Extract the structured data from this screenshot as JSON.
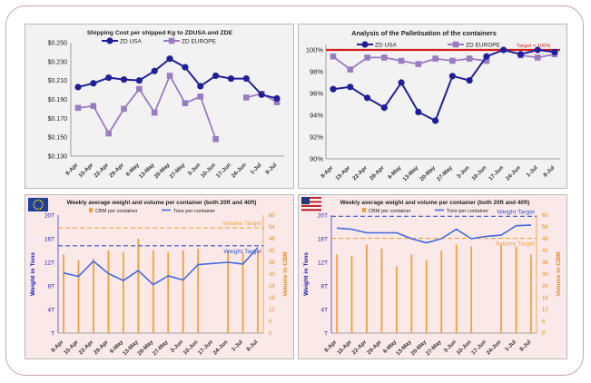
{
  "chart_data": [
    {
      "type": "line",
      "title": "Shipping Cost per shipped Kg to ZDUSA and ZDE",
      "categories": [
        "8-Apr",
        "15-Apr",
        "22-Apr",
        "29-Apr",
        "6-May",
        "13-May",
        "20-May",
        "27-May",
        "3-Jun",
        "10-Jun",
        "17-Jun",
        "24-Jun",
        "1-Jul",
        "8-Jul"
      ],
      "yticks": [
        "$0.250",
        "$0.230",
        "$0.210",
        "$0.190",
        "$0.170",
        "$0.150",
        "$0.130"
      ],
      "ylim": [
        0.13,
        0.25
      ],
      "legend_position": "top",
      "series": [
        {
          "name": "ZD USA",
          "color": "#1f1f9a",
          "values": [
            0.203,
            0.207,
            0.213,
            0.211,
            0.21,
            0.22,
            0.233,
            0.224,
            0.204,
            0.215,
            0.212,
            0.212,
            0.195,
            0.191
          ]
        },
        {
          "name": "ZD EUROPE",
          "color": "#9a7bc4",
          "values": [
            0.181,
            0.183,
            0.154,
            0.18,
            0.201,
            0.176,
            0.215,
            0.186,
            0.193,
            0.148,
            null,
            0.192,
            0.196,
            0.187
          ]
        }
      ]
    },
    {
      "type": "line",
      "title": "Analysis of the Palletisation of the containers",
      "categories": [
        "8-Apr",
        "15-Apr",
        "22-Apr",
        "29-Apr",
        "6-May",
        "13-May",
        "20-May",
        "27-May",
        "3-Jun",
        "10-Jun",
        "17-Jun",
        "24-Jun",
        "1-Jul",
        "8-Jul"
      ],
      "yticks": [
        "100%",
        "98%",
        "96%",
        "94%",
        "92%",
        "90%"
      ],
      "ylim": [
        90,
        100.5
      ],
      "target_label": "Target = 100%",
      "target_value": 100,
      "legend_position": "top",
      "series": [
        {
          "name": "ZD USA",
          "color": "#1f1f9a",
          "values": [
            96.4,
            96.6,
            95.6,
            94.7,
            97.0,
            94.3,
            93.5,
            97.6,
            97.2,
            99.4,
            100.0,
            99.6,
            100.0,
            99.8
          ]
        },
        {
          "name": "ZD EUROPE",
          "color": "#9a7bc4",
          "values": [
            99.4,
            98.2,
            99.3,
            99.3,
            99.0,
            98.7,
            99.2,
            99.0,
            99.2,
            99.0,
            null,
            99.5,
            99.3,
            99.6
          ]
        }
      ]
    },
    {
      "type": "bar",
      "title": "Weekly average weight and volume per container (both 20ft and 40ft)",
      "categories": [
        "8-Apr",
        "15-Apr",
        "22-Apr",
        "29-Apr",
        "6-May",
        "13-May",
        "20-May",
        "27-May",
        "3-Jun",
        "10-Jun",
        "17-Jun",
        "24-Jun",
        "1-Jul",
        "8-Jul"
      ],
      "ylabel": "Weight in Tons",
      "y2label": "Volume in CBM",
      "yticks": [
        "20T",
        "16T",
        "12T",
        "8T",
        "4T",
        "T"
      ],
      "y2ticks": [
        "60",
        "54",
        "48",
        "42",
        "36",
        "30",
        "24",
        "18",
        "12",
        "6",
        "0"
      ],
      "ylim": [
        0,
        20
      ],
      "y2lim": [
        0,
        60
      ],
      "weight_target_label": "Weight Target",
      "weight_target": 14.8,
      "volume_target_label": "Volume Target",
      "volume_target": 53.5,
      "legend_position": "top",
      "series": [
        {
          "name": "CBM per container",
          "color": "#f0a13a",
          "values": [
            40,
            37,
            38,
            42,
            41,
            48,
            42,
            41,
            42,
            43,
            null,
            42,
            41,
            42
          ]
        },
        {
          "name": "Tons per container",
          "color": "#4169e1",
          "values": [
            10.2,
            9.6,
            12.2,
            10.1,
            8.9,
            10.6,
            8.2,
            9.7,
            9.0,
            11.6,
            null,
            12.0,
            11.7,
            14.5
          ]
        }
      ]
    },
    {
      "type": "bar",
      "title": "Weekly average weight and volume per container (both 20ft and 40ft)",
      "categories": [
        "8-Apr",
        "15-Apr",
        "22-Apr",
        "29-Apr",
        "6-May",
        "13-May",
        "20-May",
        "27-May",
        "3-Jun",
        "10-Jun",
        "17-Jun",
        "24-Jun",
        "1-Jul",
        "8-Jul"
      ],
      "ylabel": "Weight in Tons",
      "y2label": "Volume in CBM",
      "yticks": [
        "20T",
        "16T",
        "12T",
        "8T",
        "4T",
        "T"
      ],
      "y2ticks": [
        "60",
        "54",
        "48",
        "42",
        "36",
        "30",
        "24",
        "18",
        "12",
        "6",
        "0"
      ],
      "ylim": [
        0,
        20
      ],
      "y2lim": [
        0,
        60
      ],
      "weight_target_label": "Weight Target",
      "weight_target": 19.8,
      "volume_target_label": "Volume Target",
      "volume_target": 48.2,
      "legend_position": "top",
      "series": [
        {
          "name": "CBM per container",
          "color": "#f0a13a",
          "values": [
            40,
            39,
            45,
            43,
            34,
            40,
            37,
            42,
            45,
            44,
            null,
            45,
            44,
            40
          ]
        },
        {
          "name": "Tons per container",
          "color": "#4169e1",
          "values": [
            17.8,
            17.6,
            17.0,
            17.0,
            17.0,
            16.0,
            15.3,
            16.0,
            17.6,
            16.0,
            16.4,
            16.6,
            18.2,
            18.3
          ]
        }
      ]
    }
  ]
}
